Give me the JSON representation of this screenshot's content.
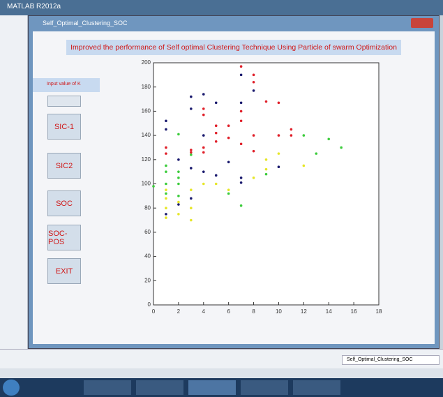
{
  "app_title": "MATLAB R2012a",
  "figure_title": "Self_Optimal_Clustering_SOC",
  "banner": "Improved the performance of Self optimal Clustering Technique Using Particle of swarm Optimization",
  "input_label": "Input value of K",
  "buttons": [
    "SIC-1",
    "SIC2",
    "SOC",
    "SOC-POS",
    "EXIT"
  ],
  "status_right": "Self_Optimal_Clustering_SOC",
  "chart_data": {
    "type": "scatter",
    "xlim": [
      0,
      18
    ],
    "ylim": [
      0,
      200
    ],
    "xticks": [
      0,
      2,
      4,
      6,
      8,
      10,
      12,
      14,
      16,
      18
    ],
    "yticks": [
      0,
      20,
      40,
      60,
      80,
      100,
      120,
      140,
      160,
      180,
      200
    ],
    "series": [
      {
        "color": "#e0202a",
        "x": [
          7,
          8,
          8,
          9,
          10,
          4,
          4,
          6,
          7,
          7,
          5,
          5,
          6,
          8,
          10,
          11,
          11,
          4,
          4,
          3,
          1,
          1,
          5,
          7,
          8,
          3
        ],
        "values": [
          197,
          190,
          184,
          168,
          167,
          162,
          157,
          148,
          160,
          152,
          148,
          142,
          138,
          140,
          140,
          145,
          140,
          130,
          126,
          128,
          130,
          125,
          135,
          133,
          127,
          126
        ]
      },
      {
        "color": "#1a1a6e",
        "x": [
          7,
          8,
          4,
          3,
          5,
          3,
          7,
          1,
          1,
          4,
          2,
          3,
          4,
          5,
          7,
          7,
          6,
          10,
          2,
          1,
          3
        ],
        "values": [
          190,
          177,
          174,
          172,
          167,
          162,
          167,
          152,
          145,
          140,
          120,
          113,
          110,
          107,
          105,
          101,
          118,
          114,
          83,
          75,
          88
        ]
      },
      {
        "color": "#3ccc3c",
        "x": [
          1,
          1,
          2,
          2,
          1,
          2,
          0,
          1,
          2,
          6,
          9,
          12,
          14,
          15,
          13,
          2,
          3,
          7
        ],
        "values": [
          115,
          110,
          110,
          105,
          100,
          100,
          98,
          92,
          90,
          92,
          108,
          140,
          137,
          130,
          125,
          141,
          124,
          82
        ]
      },
      {
        "color": "#e6e628",
        "x": [
          1,
          1,
          1,
          1,
          2,
          3,
          3,
          4,
          5,
          6,
          8,
          9,
          9,
          10,
          12,
          3,
          2
        ],
        "values": [
          95,
          88,
          80,
          72,
          85,
          80,
          95,
          100,
          100,
          95,
          105,
          112,
          120,
          125,
          115,
          70,
          75
        ]
      }
    ]
  }
}
